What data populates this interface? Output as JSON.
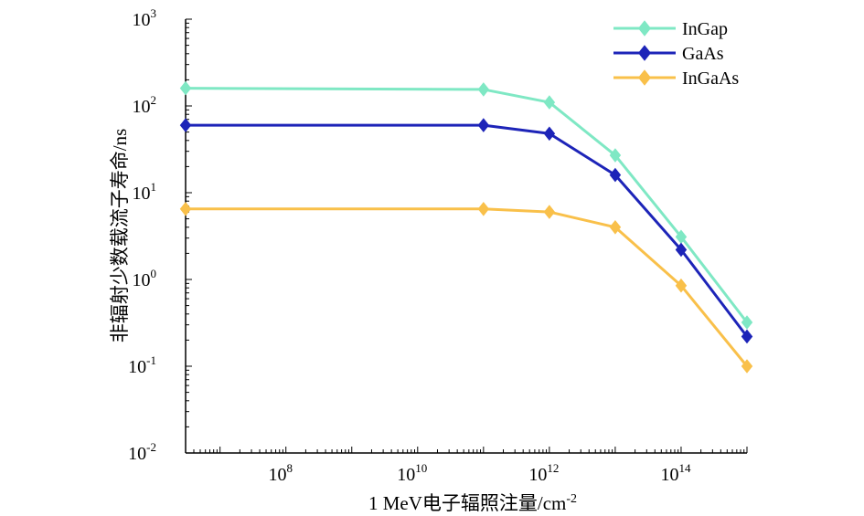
{
  "chart_data": {
    "type": "line",
    "xscale": "log",
    "yscale": "log",
    "xlim": [
      3000000.0,
      1000000000000000.0
    ],
    "ylim": [
      0.01,
      1000
    ],
    "x_ticks": [
      {
        "value": 100000000.0,
        "base": "10",
        "exp": "8"
      },
      {
        "value": 10000000000.0,
        "base": "10",
        "exp": "10"
      },
      {
        "value": 1000000000000.0,
        "base": "10",
        "exp": "12"
      },
      {
        "value": 100000000000000.0,
        "base": "10",
        "exp": "14"
      }
    ],
    "y_ticks": [
      {
        "value": 0.01,
        "base": "10",
        "exp": "-2"
      },
      {
        "value": 0.1,
        "base": "10",
        "exp": "-1"
      },
      {
        "value": 1,
        "base": "10",
        "exp": "0"
      },
      {
        "value": 10,
        "base": "10",
        "exp": "1"
      },
      {
        "value": 100,
        "base": "10",
        "exp": "2"
      },
      {
        "value": 1000,
        "base": "10",
        "exp": "3"
      }
    ],
    "xlabel": "1 MeV电子辐照注量/cm",
    "xlabel_sup": "-2",
    "ylabel": "非辐射少数载流子寿命/ns",
    "grid": false,
    "legend_position": "top-right",
    "x": [
      3000000.0,
      100000000000.0,
      1000000000000.0,
      10000000000000.0,
      100000000000000.0,
      1000000000000000.0
    ],
    "series": [
      {
        "name": "InGap",
        "color": "#7fe8c4",
        "values": [
          160,
          155,
          110,
          27,
          3.1,
          0.32
        ]
      },
      {
        "name": "GaAs",
        "color": "#1d24b8",
        "values": [
          60,
          60,
          48,
          16,
          2.2,
          0.22
        ]
      },
      {
        "name": "InGaAs",
        "color": "#f9c04a",
        "values": [
          6.5,
          6.5,
          6.0,
          4.0,
          0.85,
          0.1
        ]
      }
    ]
  }
}
